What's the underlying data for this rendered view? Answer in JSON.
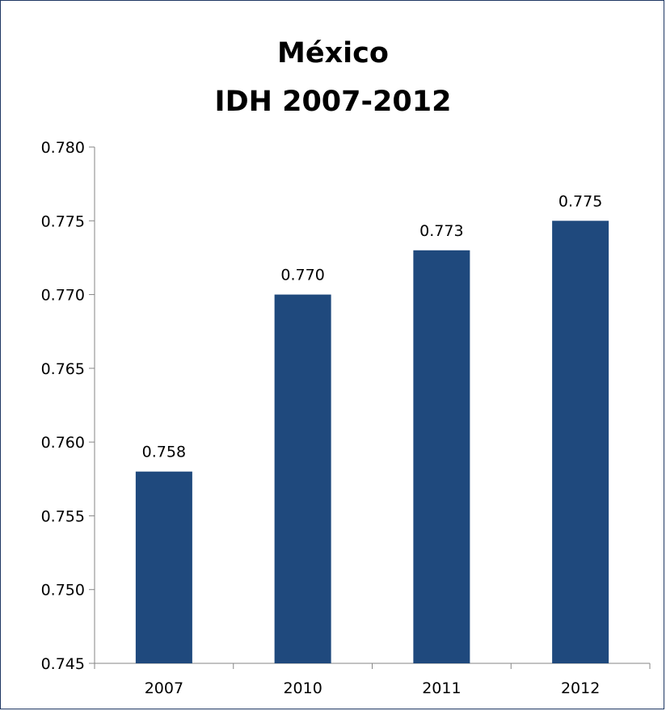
{
  "chart_data": {
    "type": "bar",
    "title": [
      "México",
      "IDH  2007-2012"
    ],
    "categories": [
      "2007",
      "2010",
      "2011",
      "2012"
    ],
    "values": [
      0.758,
      0.77,
      0.773,
      0.775
    ],
    "data_labels": [
      "0.758",
      "0.770",
      "0.773",
      "0.775"
    ],
    "ylim": [
      0.745,
      0.78
    ],
    "yticks": [
      "0.780",
      "0.775",
      "0.770",
      "0.765",
      "0.760",
      "0.755",
      "0.750",
      "0.745"
    ],
    "ytick_values": [
      0.78,
      0.775,
      0.77,
      0.765,
      0.76,
      0.755,
      0.75,
      0.745
    ],
    "xlabel": "",
    "ylabel": "",
    "grid": false,
    "legend": "none",
    "bar_color": "#1f497d",
    "border_color": "#1f3864"
  }
}
